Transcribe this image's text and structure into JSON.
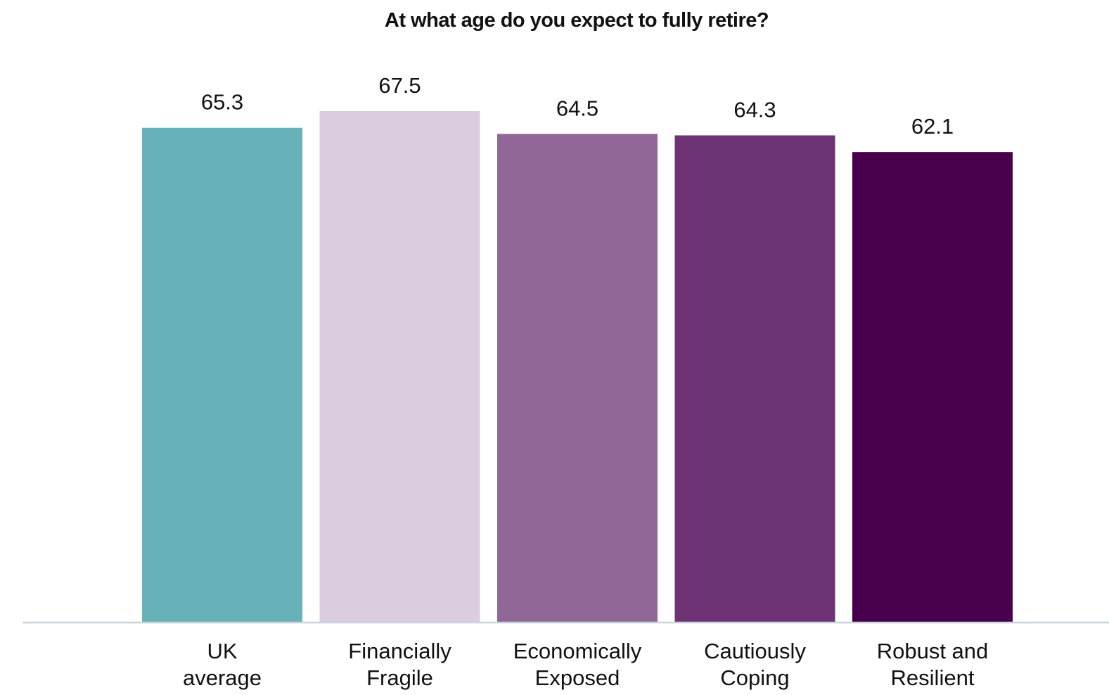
{
  "chart_data": {
    "type": "bar",
    "title": "At what age do you expect to fully retire?",
    "xlabel": "",
    "ylabel": "",
    "categories": [
      [
        "UK",
        "average"
      ],
      [
        "Financially",
        "Fragile"
      ],
      [
        "Economically",
        "Exposed"
      ],
      [
        "Cautiously",
        "Coping"
      ],
      [
        "Robust and",
        "Resilient"
      ]
    ],
    "values": [
      65.3,
      67.5,
      64.5,
      64.3,
      62.1
    ],
    "value_labels": [
      "65.3",
      "67.5",
      "64.5",
      "64.3",
      "62.1"
    ],
    "colors": [
      "#67b2b8",
      "#dacddf",
      "#916797",
      "#6c3274",
      "#48004d"
    ],
    "ylim": [
      0,
      67.5
    ],
    "grid": false,
    "legend": "none",
    "baseline_color": "#c9d3dc"
  }
}
